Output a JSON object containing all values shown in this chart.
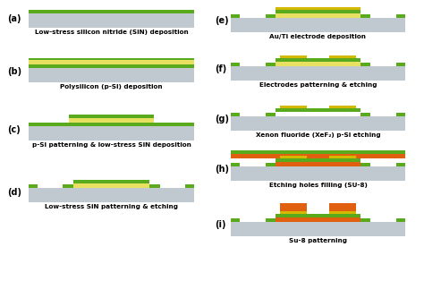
{
  "colors": {
    "silicon": "#c0c8d0",
    "green": "#5aaa1e",
    "yellow": "#e8e060",
    "gold": "#d4b800",
    "orange": "#e06010",
    "white": "#ffffff",
    "black": "#000000"
  },
  "labels": [
    "(a)",
    "(b)",
    "(c)",
    "(d)",
    "(e)",
    "(f)",
    "(g)",
    "(h)",
    "(i)"
  ],
  "captions": [
    "Low-stress silicon nitride (SiN) deposition",
    "Polysilicon (p-Si) deposition",
    "p-Si patterning & low-stress SiN deposition",
    "Low-stress SiN patterning & etching",
    "Au/Ti electrode deposition",
    "Electrodes patterning & etching",
    "Xenon fluoride (XeF₂) p-Si etching",
    "Etching holes filling (SU-8)",
    "Su-8 patterning"
  ],
  "fig_w": 4.74,
  "fig_h": 3.14,
  "dpi": 100
}
